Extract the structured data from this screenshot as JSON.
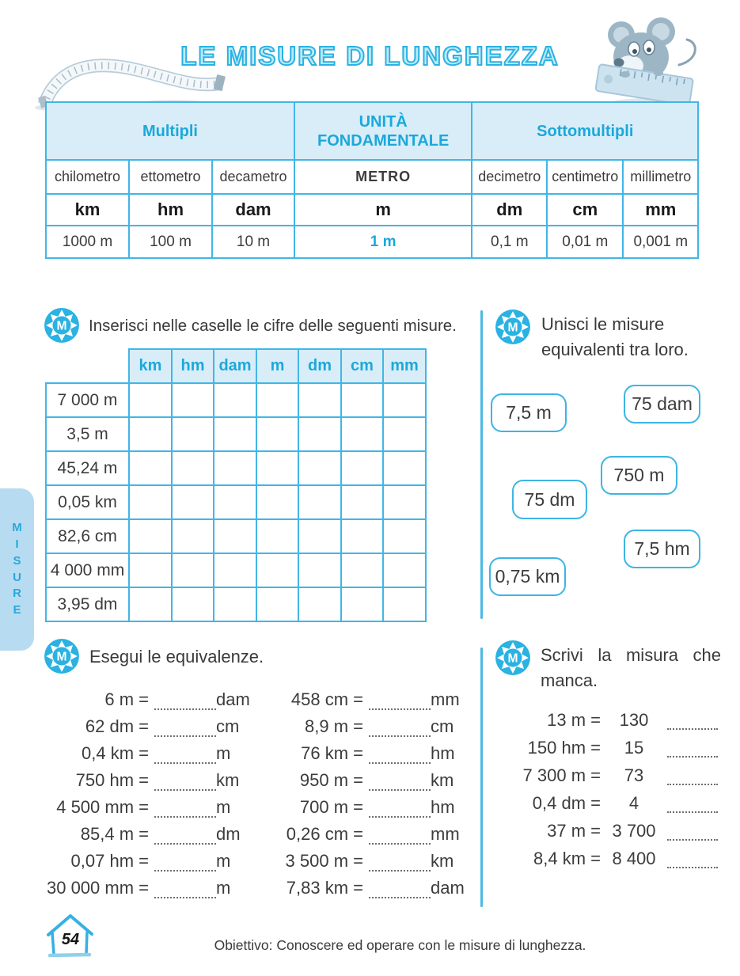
{
  "page": {
    "title": "LE MISURE DI LUNGHEZZA",
    "sidebar_label": "MISURE",
    "page_number": "54",
    "footer": "Obiettivo: Conoscere ed operare con le misure di lunghezza."
  },
  "colors": {
    "accent_cyan": "#29b2e2",
    "light_blue_fill": "#d8edf8",
    "sidebar_fill": "#b7dcf2",
    "text_dark": "#3c3c3c"
  },
  "icons": {
    "badge_letter": "M"
  },
  "units_table": {
    "groups": [
      "Multipli",
      "UNITÀ FONDAMENTALE",
      "Sottomultipli"
    ],
    "names": [
      "chilometro",
      "ettometro",
      "decametro",
      "METRO",
      "decimetro",
      "centimetro",
      "millimetro"
    ],
    "symbols": [
      "km",
      "hm",
      "dam",
      "m",
      "dm",
      "cm",
      "mm"
    ],
    "values": [
      "1000 m",
      "100 m",
      "10 m",
      "1 m",
      "0,1 m",
      "0,01 m",
      "0,001 m"
    ]
  },
  "exercise1": {
    "prompt": "Inserisci nelle caselle le cifre delle seguenti misure.",
    "columns": [
      "km",
      "hm",
      "dam",
      "m",
      "dm",
      "cm",
      "mm"
    ],
    "rows": [
      "7 000 m",
      "3,5 m",
      "45,24 m",
      "0,05 km",
      "82,6 cm",
      "4 000 mm",
      "3,95 dm"
    ]
  },
  "exercise2": {
    "prompt": "Unisci le misure equivalenti tra loro.",
    "boxes": [
      "7,5 m",
      "75 dam",
      "750 m",
      "75 dm",
      "7,5 hm",
      "0,75 km"
    ]
  },
  "exercise3": {
    "prompt": "Esegui le equivalenze.",
    "left": [
      {
        "lhs": "6 m",
        "unit": "dam"
      },
      {
        "lhs": "62 dm",
        "unit": "cm"
      },
      {
        "lhs": "0,4 km",
        "unit": "m"
      },
      {
        "lhs": "750 hm",
        "unit": "km"
      },
      {
        "lhs": "4 500 mm",
        "unit": "m"
      },
      {
        "lhs": "85,4 m",
        "unit": "dm"
      },
      {
        "lhs": "0,07 hm",
        "unit": "m"
      },
      {
        "lhs": "30 000 mm",
        "unit": "m"
      }
    ],
    "right": [
      {
        "lhs": "458 cm",
        "unit": "mm"
      },
      {
        "lhs": "8,9 m",
        "unit": "cm"
      },
      {
        "lhs": "76 km",
        "unit": "hm"
      },
      {
        "lhs": "950 m",
        "unit": "km"
      },
      {
        "lhs": "700 m",
        "unit": "hm"
      },
      {
        "lhs": "0,26 cm",
        "unit": "mm"
      },
      {
        "lhs": "3 500 m",
        "unit": "km"
      },
      {
        "lhs": "7,83 km",
        "unit": "dam"
      }
    ]
  },
  "exercise4": {
    "prompt": "Scrivi la misura che manca.",
    "rows": [
      {
        "lhs": "13 m",
        "value": "130"
      },
      {
        "lhs": "150 hm",
        "value": "15"
      },
      {
        "lhs": "7 300 m",
        "value": "73"
      },
      {
        "lhs": "0,4 dm",
        "value": "4"
      },
      {
        "lhs": "37 m",
        "value": "3 700"
      },
      {
        "lhs": "8,4 km",
        "value": "8 400"
      }
    ]
  }
}
